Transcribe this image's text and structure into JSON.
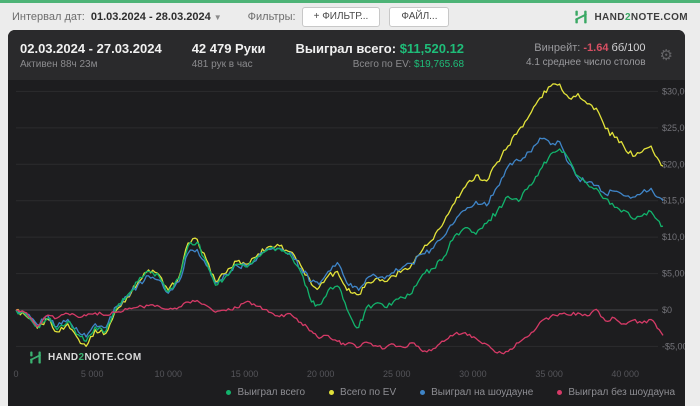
{
  "toolbar": {
    "interval_label": "Интервал дат:",
    "interval_value": "01.03.2024 - 28.03.2024",
    "filters_label": "Фильтры:",
    "filter_button": "+ ФИЛЬТР...",
    "file_button": "ФАЙЛ...",
    "brand": {
      "hand": "HAND",
      "two": "2",
      "note": "NOTE.COM"
    }
  },
  "header": {
    "date_range": "02.03.2024 - 27.03.2024",
    "active_time": "Активен 88ч 23м",
    "hands_total": "42 479 Руки",
    "hands_per_hour": "481 рук в час",
    "won_label": "Выиграл всего:",
    "won_value": "$11,520.12",
    "ev_label": "Всего по EV:",
    "ev_value": "$19,765.68",
    "winrate_label": "Винрейт:",
    "winrate_value": "-1.64",
    "winrate_units": "бб/100",
    "avg_tables": "4.1 среднее число столов"
  },
  "watermark": {
    "hand": "HAND",
    "two": "2",
    "note": "NOTE.COM"
  },
  "colors": {
    "accent_green": "#1fbd79",
    "negative_red": "#d84f63",
    "top_strip": "#4db376",
    "panel_bg": "#1d1d1f",
    "header_bg": "#2a2a2c"
  },
  "chart_data": {
    "type": "line",
    "xlabel": "hands played",
    "ylabel": "winnings ($)",
    "xlim": [
      0,
      42479
    ],
    "ylim": [
      -7500,
      31500
    ],
    "grid": true,
    "legend_position": "bottom-right",
    "x_ticks": [
      {
        "label": "0",
        "value": 0
      },
      {
        "label": "5 000",
        "value": 5000
      },
      {
        "label": "10 000",
        "value": 10000
      },
      {
        "label": "15 000",
        "value": 15000
      },
      {
        "label": "20 000",
        "value": 20000
      },
      {
        "label": "25 000",
        "value": 25000
      },
      {
        "label": "30 000",
        "value": 30000
      },
      {
        "label": "35 000",
        "value": 35000
      },
      {
        "label": "40 000",
        "value": 40000
      }
    ],
    "y_ticks": [
      {
        "label": "$30,000",
        "value": 30000
      },
      {
        "label": "$25,000",
        "value": 25000
      },
      {
        "label": "$20,000",
        "value": 20000
      },
      {
        "label": "$15,000",
        "value": 15000
      },
      {
        "label": "$10,000",
        "value": 10000
      },
      {
        "label": "$5,000",
        "value": 5000
      },
      {
        "label": "$0",
        "value": 0
      },
      {
        "label": "-$5,000",
        "value": -5000
      }
    ],
    "series": [
      {
        "key": "won-total",
        "label": "Выиграл всего",
        "color": "#12b36c",
        "final_value": 11520.12,
        "points": [
          [
            0,
            0
          ],
          [
            700,
            -800
          ],
          [
            1400,
            -2300
          ],
          [
            2100,
            -1100
          ],
          [
            2700,
            -2700
          ],
          [
            3400,
            -1600
          ],
          [
            4100,
            -3400
          ],
          [
            4600,
            -4300
          ],
          [
            5200,
            -2300
          ],
          [
            5900,
            -2900
          ],
          [
            6600,
            300
          ],
          [
            7300,
            2000
          ],
          [
            8000,
            3900
          ],
          [
            8700,
            5300
          ],
          [
            9400,
            4600
          ],
          [
            10000,
            2500
          ],
          [
            10700,
            4300
          ],
          [
            11300,
            8800
          ],
          [
            11900,
            9300
          ],
          [
            12500,
            6600
          ],
          [
            13100,
            3400
          ],
          [
            13800,
            4700
          ],
          [
            14500,
            6300
          ],
          [
            15200,
            5900
          ],
          [
            15900,
            7300
          ],
          [
            16600,
            8400
          ],
          [
            17300,
            8500
          ],
          [
            18000,
            7600
          ],
          [
            18700,
            5200
          ],
          [
            19400,
            1100
          ],
          [
            19900,
            700
          ],
          [
            20500,
            2700
          ],
          [
            21100,
            3300
          ],
          [
            21600,
            1000
          ],
          [
            22100,
            -1500
          ],
          [
            22500,
            -2400
          ],
          [
            23000,
            300
          ],
          [
            23600,
            900
          ],
          [
            24200,
            400
          ],
          [
            24800,
            1200
          ],
          [
            25400,
            1700
          ],
          [
            26000,
            2300
          ],
          [
            26700,
            4900
          ],
          [
            27400,
            5700
          ],
          [
            28100,
            7300
          ],
          [
            28800,
            10200
          ],
          [
            29500,
            11300
          ],
          [
            30200,
            10400
          ],
          [
            30900,
            11900
          ],
          [
            31600,
            13600
          ],
          [
            32300,
            15600
          ],
          [
            33000,
            14900
          ],
          [
            33700,
            17100
          ],
          [
            34400,
            19200
          ],
          [
            35100,
            21400
          ],
          [
            35700,
            22100
          ],
          [
            36300,
            20700
          ],
          [
            36900,
            18400
          ],
          [
            37500,
            17300
          ],
          [
            38100,
            16700
          ],
          [
            38700,
            15300
          ],
          [
            39300,
            14100
          ],
          [
            39900,
            13700
          ],
          [
            40500,
            12500
          ],
          [
            41100,
            12900
          ],
          [
            41700,
            13500
          ],
          [
            42100,
            12400
          ],
          [
            42479,
            11520
          ]
        ]
      },
      {
        "key": "total-ev",
        "label": "Всего по EV",
        "color": "#e2e23a",
        "final_value": 19765.68,
        "points": [
          [
            0,
            0
          ],
          [
            700,
            -900
          ],
          [
            1400,
            -2500
          ],
          [
            2100,
            -1300
          ],
          [
            2700,
            -3000
          ],
          [
            3400,
            -1900
          ],
          [
            4100,
            -4000
          ],
          [
            4600,
            -5000
          ],
          [
            5200,
            -2700
          ],
          [
            5900,
            -3200
          ],
          [
            6600,
            0
          ],
          [
            7300,
            1800
          ],
          [
            8000,
            3700
          ],
          [
            8700,
            5500
          ],
          [
            9400,
            4800
          ],
          [
            10000,
            2700
          ],
          [
            10700,
            4500
          ],
          [
            11300,
            9200
          ],
          [
            11900,
            9700
          ],
          [
            12500,
            6900
          ],
          [
            13100,
            3900
          ],
          [
            13800,
            5100
          ],
          [
            14500,
            6700
          ],
          [
            15200,
            6300
          ],
          [
            15900,
            7700
          ],
          [
            16600,
            8700
          ],
          [
            17300,
            8800
          ],
          [
            18000,
            8000
          ],
          [
            18700,
            6100
          ],
          [
            19400,
            3500
          ],
          [
            19900,
            3100
          ],
          [
            20500,
            4700
          ],
          [
            21100,
            5300
          ],
          [
            21600,
            3300
          ],
          [
            22100,
            2300
          ],
          [
            22500,
            2100
          ],
          [
            23000,
            3700
          ],
          [
            23600,
            4300
          ],
          [
            24200,
            3900
          ],
          [
            24800,
            4700
          ],
          [
            25400,
            5500
          ],
          [
            26000,
            6300
          ],
          [
            26700,
            8300
          ],
          [
            27400,
            9700
          ],
          [
            28100,
            12100
          ],
          [
            28800,
            14700
          ],
          [
            29500,
            16900
          ],
          [
            30200,
            18500
          ],
          [
            30900,
            17700
          ],
          [
            31600,
            20300
          ],
          [
            32300,
            22500
          ],
          [
            33000,
            24700
          ],
          [
            33700,
            26700
          ],
          [
            34400,
            29100
          ],
          [
            35100,
            30700
          ],
          [
            35700,
            31000
          ],
          [
            36300,
            29100
          ],
          [
            36900,
            29700
          ],
          [
            37500,
            28300
          ],
          [
            38100,
            27700
          ],
          [
            38700,
            24900
          ],
          [
            39300,
            23700
          ],
          [
            39900,
            22500
          ],
          [
            40500,
            21100
          ],
          [
            41100,
            21700
          ],
          [
            41700,
            22500
          ],
          [
            42100,
            20900
          ],
          [
            42479,
            19766
          ]
        ]
      },
      {
        "key": "won-showdown",
        "label": "Выиграл на шоудауне",
        "color": "#3f85c8",
        "final_value": 15000,
        "points": [
          [
            0,
            0
          ],
          [
            700,
            -600
          ],
          [
            1400,
            -2000
          ],
          [
            2100,
            -800
          ],
          [
            2700,
            -2300
          ],
          [
            3400,
            -1300
          ],
          [
            4100,
            -3000
          ],
          [
            4600,
            -3700
          ],
          [
            5200,
            -1900
          ],
          [
            5900,
            -2400
          ],
          [
            6600,
            500
          ],
          [
            7300,
            1900
          ],
          [
            8000,
            3400
          ],
          [
            8700,
            4700
          ],
          [
            9400,
            4100
          ],
          [
            10000,
            2300
          ],
          [
            10700,
            3900
          ],
          [
            11300,
            7800
          ],
          [
            11900,
            8300
          ],
          [
            12500,
            6100
          ],
          [
            13100,
            3700
          ],
          [
            13800,
            4900
          ],
          [
            14500,
            6100
          ],
          [
            15200,
            6000
          ],
          [
            15900,
            7400
          ],
          [
            16600,
            8300
          ],
          [
            17300,
            8400
          ],
          [
            18000,
            7900
          ],
          [
            18700,
            5700
          ],
          [
            19400,
            3900
          ],
          [
            19900,
            3500
          ],
          [
            20500,
            5300
          ],
          [
            21100,
            6500
          ],
          [
            21600,
            4300
          ],
          [
            22100,
            3100
          ],
          [
            22500,
            2700
          ],
          [
            23000,
            4300
          ],
          [
            23600,
            4700
          ],
          [
            24200,
            4300
          ],
          [
            24800,
            5100
          ],
          [
            25400,
            5900
          ],
          [
            26000,
            6400
          ],
          [
            26700,
            7700
          ],
          [
            27400,
            8500
          ],
          [
            28100,
            10100
          ],
          [
            28800,
            12100
          ],
          [
            29500,
            13700
          ],
          [
            30200,
            14900
          ],
          [
            30900,
            14300
          ],
          [
            31600,
            16900
          ],
          [
            32300,
            19700
          ],
          [
            33000,
            20500
          ],
          [
            33700,
            21700
          ],
          [
            34400,
            23600
          ],
          [
            35100,
            22700
          ],
          [
            35700,
            23100
          ],
          [
            36300,
            20100
          ],
          [
            36900,
            18100
          ],
          [
            37500,
            17500
          ],
          [
            38100,
            17100
          ],
          [
            38700,
            15900
          ],
          [
            39300,
            16300
          ],
          [
            39900,
            15700
          ],
          [
            40500,
            15500
          ],
          [
            41100,
            16100
          ],
          [
            41700,
            16700
          ],
          [
            42100,
            15500
          ],
          [
            42479,
            15000
          ]
        ]
      },
      {
        "key": "won-nonshowdown",
        "label": "Выиграл без шоудауна",
        "color": "#d63a67",
        "final_value": -3480,
        "points": [
          [
            0,
            0
          ],
          [
            700,
            -400
          ],
          [
            1400,
            -2300
          ],
          [
            2100,
            -700
          ],
          [
            2700,
            -1100
          ],
          [
            3400,
            -500
          ],
          [
            4100,
            -1000
          ],
          [
            4600,
            -800
          ],
          [
            5200,
            -400
          ],
          [
            5900,
            -700
          ],
          [
            6600,
            -300
          ],
          [
            7300,
            100
          ],
          [
            8000,
            400
          ],
          [
            8700,
            600
          ],
          [
            9400,
            500
          ],
          [
            10000,
            100
          ],
          [
            10700,
            400
          ],
          [
            11300,
            1100
          ],
          [
            11900,
            1300
          ],
          [
            12500,
            600
          ],
          [
            13100,
            -300
          ],
          [
            13800,
            -100
          ],
          [
            14500,
            300
          ],
          [
            15200,
            1200
          ],
          [
            15900,
            500
          ],
          [
            16600,
            -300
          ],
          [
            17300,
            -900
          ],
          [
            18000,
            -500
          ],
          [
            18700,
            -1700
          ],
          [
            19400,
            -2900
          ],
          [
            19900,
            -3900
          ],
          [
            20500,
            -3500
          ],
          [
            21100,
            -4300
          ],
          [
            21600,
            -4800
          ],
          [
            22100,
            -4600
          ],
          [
            22500,
            -5100
          ],
          [
            23000,
            -4400
          ],
          [
            23600,
            -4900
          ],
          [
            24200,
            -5300
          ],
          [
            24800,
            -4700
          ],
          [
            25400,
            -5100
          ],
          [
            26000,
            -4500
          ],
          [
            26700,
            -5700
          ],
          [
            27400,
            -5300
          ],
          [
            28100,
            -4300
          ],
          [
            28800,
            -3300
          ],
          [
            29500,
            -3100
          ],
          [
            30200,
            -3900
          ],
          [
            30900,
            -4700
          ],
          [
            31600,
            -5900
          ],
          [
            32300,
            -5700
          ],
          [
            33000,
            -4500
          ],
          [
            33700,
            -3500
          ],
          [
            34400,
            -1700
          ],
          [
            35100,
            -900
          ],
          [
            35700,
            -500
          ],
          [
            36300,
            -700
          ],
          [
            36900,
            -400
          ],
          [
            37500,
            -800
          ],
          [
            38100,
            100
          ],
          [
            38700,
            -1500
          ],
          [
            39300,
            -1100
          ],
          [
            39900,
            -1900
          ],
          [
            40500,
            -1400
          ],
          [
            41100,
            -1800
          ],
          [
            41700,
            -1300
          ],
          [
            42100,
            -2500
          ],
          [
            42479,
            -3480
          ]
        ]
      }
    ]
  }
}
